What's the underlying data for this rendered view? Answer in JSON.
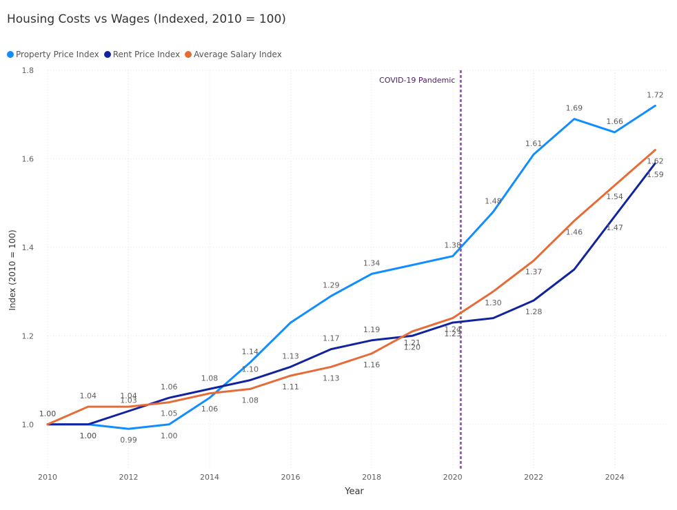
{
  "chart_data": {
    "type": "line",
    "title": "Housing Costs vs Wages (Indexed, 2010 = 100)",
    "xlabel": "Year",
    "ylabel": "Index (2010 = 100)",
    "x": [
      2010,
      2011,
      2012,
      2013,
      2014,
      2015,
      2016,
      2017,
      2018,
      2019,
      2020,
      2021,
      2022,
      2023,
      2024,
      2025
    ],
    "xticks": [
      "2010",
      "2012",
      "2014",
      "2016",
      "2018",
      "2020",
      "2022",
      "2024"
    ],
    "yticks": [
      "1.0",
      "1.2",
      "1.4",
      "1.6",
      "1.8"
    ],
    "xlim": [
      2010,
      2025.3
    ],
    "ylim": [
      0.9,
      1.8
    ],
    "grid": true,
    "legend_position": "top-left",
    "series": [
      {
        "name": "Property Price Index",
        "color": "#118DFF",
        "values": [
          1.0,
          1.0,
          0.99,
          1.0,
          1.06,
          1.14,
          1.23,
          1.29,
          1.34,
          1.36,
          1.38,
          1.48,
          1.61,
          1.69,
          1.66,
          1.72
        ],
        "labels": [
          "1.00",
          "1.00",
          "0.99",
          "1.00",
          "1.06",
          "1.14",
          "",
          "1.29",
          "1.34",
          "",
          "1.38",
          "1.48",
          "1.61",
          "1.69",
          "1.66",
          "1.72"
        ]
      },
      {
        "name": "Rent Price Index",
        "color": "#12239E",
        "values": [
          1.0,
          1.0,
          1.03,
          1.06,
          1.08,
          1.1,
          1.13,
          1.17,
          1.19,
          1.2,
          1.23,
          1.24,
          1.28,
          1.35,
          1.47,
          1.59
        ],
        "labels": [
          "",
          "1.00",
          "1.03",
          "1.06",
          "1.08",
          "1.10",
          "1.13",
          "1.17",
          "1.19",
          "1.20",
          "1.23",
          "",
          "1.28",
          "",
          "1.47",
          "1.59"
        ]
      },
      {
        "name": "Average Salary Index",
        "color": "#E66C37",
        "values": [
          1.0,
          1.04,
          1.04,
          1.05,
          1.07,
          1.08,
          1.11,
          1.13,
          1.16,
          1.21,
          1.24,
          1.3,
          1.37,
          1.46,
          1.54,
          1.62
        ],
        "labels": [
          "1.00",
          "1.04",
          "1.04",
          "1.05",
          "",
          "1.08",
          "1.11",
          "1.13",
          "1.16",
          "1.21",
          "1.24",
          "1.30",
          "1.37",
          "1.46",
          "1.54",
          "1.62"
        ]
      }
    ],
    "annotations": [
      {
        "x": 2020.2,
        "text": "COVID-19 Pandemic",
        "color": "#9B59B6",
        "style": "dashed-vertical-line"
      }
    ]
  }
}
